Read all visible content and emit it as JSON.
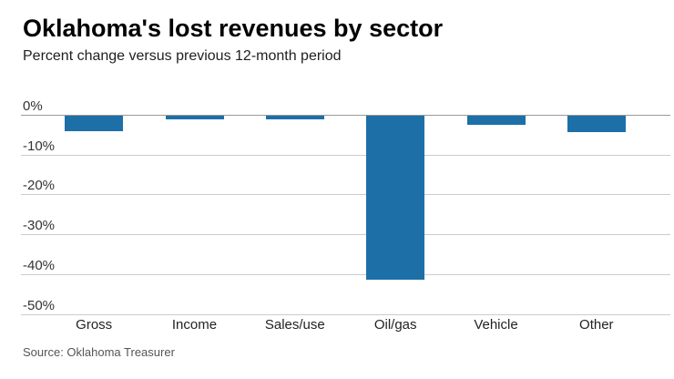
{
  "header": {
    "title": "Oklahoma's lost revenues by sector",
    "subtitle": "Percent change versus previous 12-month period"
  },
  "footer": {
    "source": "Source: Oklahoma Treasurer"
  },
  "chart_data": {
    "type": "bar",
    "title": "Oklahoma's lost revenues by sector",
    "subtitle": "Percent change versus previous 12-month period",
    "categories": [
      "Gross",
      "Income",
      "Sales/use",
      "Oil/gas",
      "Vehicle",
      "Other"
    ],
    "values": [
      -4.1,
      -1.0,
      -1.0,
      -41.4,
      -2.4,
      -4.2
    ],
    "unit": "percent",
    "ylabel": "",
    "xlabel": "",
    "ylim": [
      -50,
      0
    ],
    "ytick_labels": [
      "0%",
      "-10%",
      "-20%",
      "-30%",
      "-40%",
      "-50%"
    ],
    "ytick_values": [
      0,
      -10,
      -20,
      -30,
      -40,
      -50
    ],
    "grid": "horizontal",
    "legend": "none",
    "bar_color": "#1d6fa8",
    "gridline_color": "#cccccc",
    "zero_line_color": "#999999",
    "source": "Source: Oklahoma Treasurer"
  }
}
